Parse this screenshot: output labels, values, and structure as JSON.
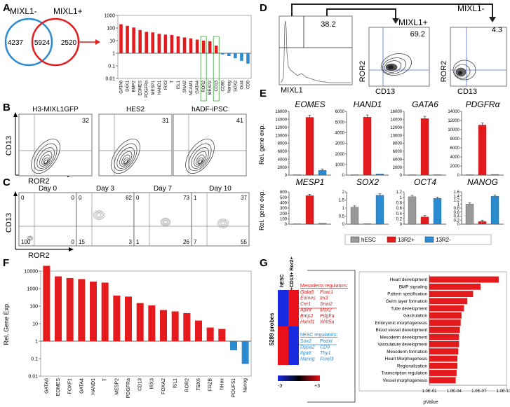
{
  "panels": {
    "A": "A",
    "B": "B",
    "C": "C",
    "D": "D",
    "E": "E",
    "F": "F",
    "G": "G"
  },
  "colors": {
    "red": "#e41a1c",
    "blue": "#2a8bd0",
    "gray": "#999999"
  },
  "venn": {
    "left_label": "MIXL1-",
    "right_label": "MIXL1+",
    "left_only": "4237",
    "overlap": "5924",
    "right_only": "2520"
  },
  "chart_data": [
    {
      "id": "A-bar",
      "type": "bar",
      "scale": "log",
      "yticks": [
        "1000",
        "100",
        "10",
        "1",
        "0.1",
        "0.01"
      ],
      "categories": [
        "GATA6",
        "DKK1",
        "BMP2",
        "EOMES",
        "PDGFRa",
        "MESP1",
        "HAND1",
        "IRX3",
        "T",
        "ISL1",
        "SNAI2",
        "NCAM1",
        "GATA4",
        "ROR2",
        "MESP2",
        "CD13",
        "CD90",
        "Nanog",
        "SOX2",
        "Oct4",
        "CD9"
      ],
      "values": [
        200,
        150,
        110,
        70,
        50,
        45,
        35,
        30,
        28,
        22,
        18,
        15,
        12,
        10,
        9,
        4,
        0.8,
        0.6,
        0.4,
        0.25,
        0.15
      ],
      "highlighted": [
        "ROR2",
        "CD13"
      ]
    },
    {
      "id": "F-bar",
      "type": "bar",
      "scale": "log",
      "ylabel": "Rel. Gene Exp.",
      "yticks": [
        "10000",
        "1000",
        "100",
        "10",
        "1",
        "0.1",
        "0.01"
      ],
      "categories": [
        "GATA6",
        "EOMES",
        "FOXF1",
        "GATA4",
        "HAND1",
        "T",
        "MESP2",
        "PDGFRa",
        "CD13",
        "IRX3",
        "FOXA2",
        "ISL1",
        "ROR2",
        "TBX6",
        "FRZB",
        "hHex",
        "POUF51",
        "Nanog"
      ],
      "values": [
        20000,
        5000,
        4000,
        3500,
        2500,
        2200,
        400,
        350,
        150,
        110,
        60,
        50,
        40,
        15,
        6,
        5,
        0.3,
        0.05
      ]
    },
    {
      "id": "E-bars",
      "type": "bar",
      "series_names": [
        "hESC",
        "13R2+",
        "13R2-"
      ],
      "ylabel": "Rel. gene exp.",
      "genes": [
        {
          "name": "EOMES",
          "ticks": [
            "16000",
            "14000",
            "12000",
            "10000",
            "8000",
            "6000",
            "4000",
            "2000",
            "0"
          ],
          "ymax": 16000,
          "values": [
            50,
            14500,
            1200
          ]
        },
        {
          "name": "HAND1",
          "ticks": [
            "6000",
            "5000",
            "4000",
            "3000",
            "2000",
            "1000",
            "0"
          ],
          "ymax": 6000,
          "values": [
            30,
            5450,
            120
          ]
        },
        {
          "name": "GATA6",
          "ticks": [
            "16000",
            "14000",
            "12000",
            "10000",
            "8000",
            "6000",
            "4000",
            "2000",
            "0"
          ],
          "ymax": 16000,
          "values": [
            40,
            14200,
            80
          ]
        },
        {
          "name": "PDGFRα",
          "ticks": [
            "14000",
            "12000",
            "10000",
            "8000",
            "6000",
            "4000",
            "2000",
            "0"
          ],
          "ymax": 14000,
          "values": [
            100,
            11000,
            150
          ]
        },
        {
          "name": "MESP1",
          "ticks": [
            "600",
            "500",
            "400",
            "300",
            "200",
            "100",
            "0"
          ],
          "ymax": 600,
          "values": [
            2,
            530,
            15
          ]
        },
        {
          "name": "SOX2",
          "ticks": [
            "2",
            "1.5",
            "1",
            "0.5",
            "0"
          ],
          "ymax": 2,
          "values": [
            1.05,
            0.01,
            1.8
          ]
        },
        {
          "name": "OCT4",
          "ticks": [
            "1.2",
            "1",
            "0.8",
            "0.6",
            "0.4",
            "0.2",
            "0"
          ],
          "ymax": 1.2,
          "values": [
            1.02,
            0.27,
            0.96
          ]
        },
        {
          "name": "NANOG",
          "ticks": [
            "1.6",
            "1.4",
            "1.2",
            "1",
            "0.8",
            "0.6",
            "0.4",
            "0.2",
            "0"
          ],
          "ymax": 1.6,
          "values": [
            1.0,
            0.13,
            1.38
          ]
        }
      ]
    },
    {
      "id": "G-bar",
      "type": "bar",
      "orientation": "horizontal",
      "xlabel": "pValue",
      "xticks": [
        "1.0E-01",
        "1.0E-04",
        "1.0E-07",
        "1.0E-10"
      ],
      "categories": [
        "Heart development",
        "BMP signaling",
        "Pattern specification",
        "Germ layer formation",
        "Tube development",
        "Gastrulation",
        "Embryonic morphogenesis",
        "Blood vessel development",
        "Mesoderm development",
        "Vasculature development",
        "Mesoderm formation",
        "Heart Morphogenesis",
        "Regionalization",
        "Transcription regulation",
        "Vessel morphogenesis"
      ],
      "values": [
        9.4,
        7.2,
        6.3,
        5.6,
        5.2,
        4.9,
        4.8,
        4.7,
        4.6,
        4.6,
        4.5,
        4.4,
        4.4,
        4.3,
        4.2
      ]
    }
  ],
  "panelB": {
    "plots": [
      {
        "title": "H3-MIXL1GFP",
        "value": "32"
      },
      {
        "title": "HES2",
        "value": "31"
      },
      {
        "title": "hADF-iPSC",
        "value": "41"
      }
    ],
    "ylabel": "CD13",
    "xlabel": "ROR2"
  },
  "panelC": {
    "plots": [
      {
        "title": "Day 0",
        "tl": "0",
        "tr": "0",
        "bl": "100",
        "br": "0"
      },
      {
        "title": "Day 3",
        "tl": "0",
        "tr": "82",
        "bl": "15",
        "br": "3"
      },
      {
        "title": "Day 7",
        "tl": "0",
        "tr": "73",
        "bl": "1",
        "br": "26"
      },
      {
        "title": "Day 10",
        "tl": "1",
        "tr": "37",
        "bl": "7",
        "br": "55"
      }
    ],
    "ylabel": "CD13",
    "xlabel": "ROR2"
  },
  "panelD": {
    "hist_value": "38.2",
    "hist_xlabel": "MIXL1",
    "pos_title": "MIXL1+",
    "pos_value": "69.2",
    "neg_title": "MIXL1-",
    "neg_value": "4.3",
    "ylabel": "ROR2",
    "xlabel": "CD13"
  },
  "panelG": {
    "col1": "hESC",
    "col2": "Mixl+CD13+ Ror2+",
    "probes": "5289 probes",
    "scale_min": "-3",
    "scale_max": "+3",
    "meso_title": "Mesoderm regulators:",
    "meso_genes": [
      "Gata6",
      "Foxc1",
      "Eomes",
      "Irx3",
      "Cer1",
      "Snai2",
      "Aplnr",
      "Msx2",
      "Bmp2",
      "Pdgfra",
      "Hand1",
      "Wnt5a"
    ],
    "hesc_title": "hESC regulators:",
    "hesc_genes": [
      "Sox2",
      "Podxl",
      "Dppa2",
      "CD9",
      "Itga6",
      "Thy1",
      "Nanog",
      "Foxd3"
    ]
  }
}
